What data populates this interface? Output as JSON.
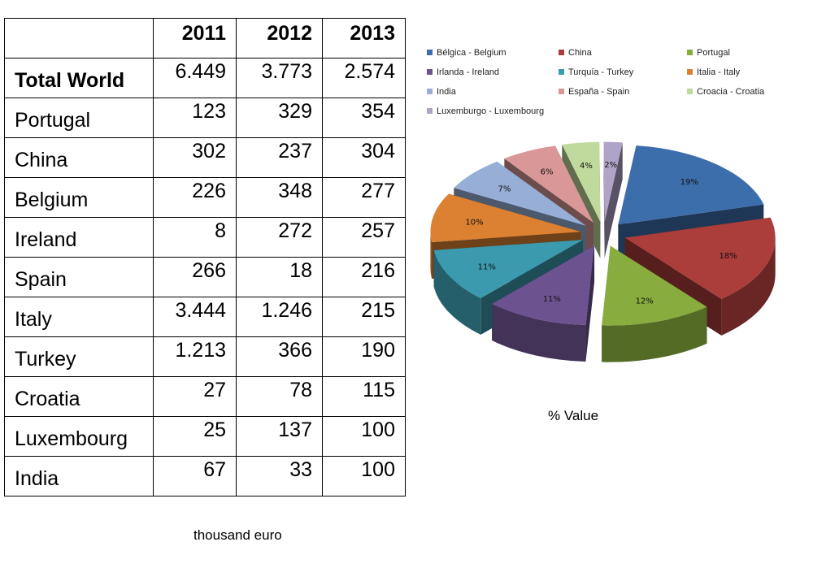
{
  "table": {
    "headers": [
      "",
      "2011",
      "2012",
      "2013"
    ],
    "rows": [
      {
        "name": "Total World",
        "values": [
          "6.449",
          "3.773",
          "2.574"
        ],
        "bold": true
      },
      {
        "name": "Portugal",
        "values": [
          "123",
          "329",
          "354"
        ]
      },
      {
        "name": "China",
        "values": [
          "302",
          "237",
          "304"
        ]
      },
      {
        "name": "Belgium",
        "values": [
          "226",
          "348",
          "277"
        ]
      },
      {
        "name": "Ireland",
        "values": [
          "8",
          "272",
          "257"
        ]
      },
      {
        "name": "Spain",
        "values": [
          "266",
          "18",
          "216"
        ]
      },
      {
        "name": "Italy",
        "values": [
          "3.444",
          "1.246",
          "215"
        ]
      },
      {
        "name": "Turkey",
        "values": [
          "1.213",
          "366",
          "190"
        ]
      },
      {
        "name": "Croatia",
        "values": [
          "27",
          "78",
          "115"
        ]
      },
      {
        "name": "Luxembourg",
        "values": [
          "25",
          "137",
          "100"
        ]
      },
      {
        "name": "India",
        "values": [
          "67",
          "33",
          "100"
        ]
      }
    ],
    "unit_note": "thousand euro"
  },
  "chart_data": {
    "type": "pie",
    "style": "3d-exploded",
    "caption": "% Value",
    "legend_position": "top",
    "slices": [
      {
        "label": "Bélgica - Belgium",
        "value": 19,
        "data_label": "19%",
        "color": "#3D6EAC"
      },
      {
        "label": "China",
        "value": 18,
        "data_label": "18%",
        "color": "#AB3D3B"
      },
      {
        "label": "Portugal",
        "value": 12,
        "data_label": "12%",
        "color": "#88AC3E"
      },
      {
        "label": "Irlanda - Ireland",
        "value": 11,
        "data_label": "11%",
        "color": "#6D5290"
      },
      {
        "label": "Turquía - Turkey",
        "value": 11,
        "data_label": "11%",
        "color": "#3B9AAE"
      },
      {
        "label": "Italia - Italy",
        "value": 10,
        "data_label": "10%",
        "color": "#DB8131"
      },
      {
        "label": "India",
        "value": 7,
        "data_label": "7%",
        "color": "#97AFD7"
      },
      {
        "label": "España - Spain",
        "value": 6,
        "data_label": "6%",
        "color": "#D99897"
      },
      {
        "label": "Croacia - Croatia",
        "value": 4,
        "data_label": "4%",
        "color": "#C0D99C"
      },
      {
        "label": "Luxemburgo - Luxembourg",
        "value": 2,
        "data_label": "2%",
        "color": "#B0A3C8"
      }
    ]
  }
}
